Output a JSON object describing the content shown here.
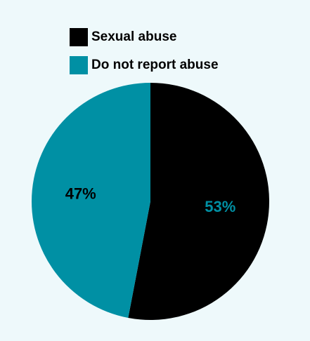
{
  "colors": {
    "background": "#eef9fb",
    "sexual_abuse": "#000000",
    "do_not_report": "#0090a4"
  },
  "legend": [
    {
      "label": "Sexual abuse",
      "color": "#000000"
    },
    {
      "label": "Do not report abuse",
      "color": "#0090a4"
    }
  ],
  "chart_data": {
    "type": "pie",
    "title": "",
    "legend_position": "top",
    "start_angle": "12 o'clock",
    "direction": "clockwise",
    "slices": [
      {
        "label": "Sexual abuse",
        "value": 53,
        "display": "53%",
        "color": "#000000",
        "label_color": "#0090a4"
      },
      {
        "label": "Do not report abuse",
        "value": 47,
        "display": "47%",
        "color": "#0090a4",
        "label_color": "#000000"
      }
    ]
  }
}
